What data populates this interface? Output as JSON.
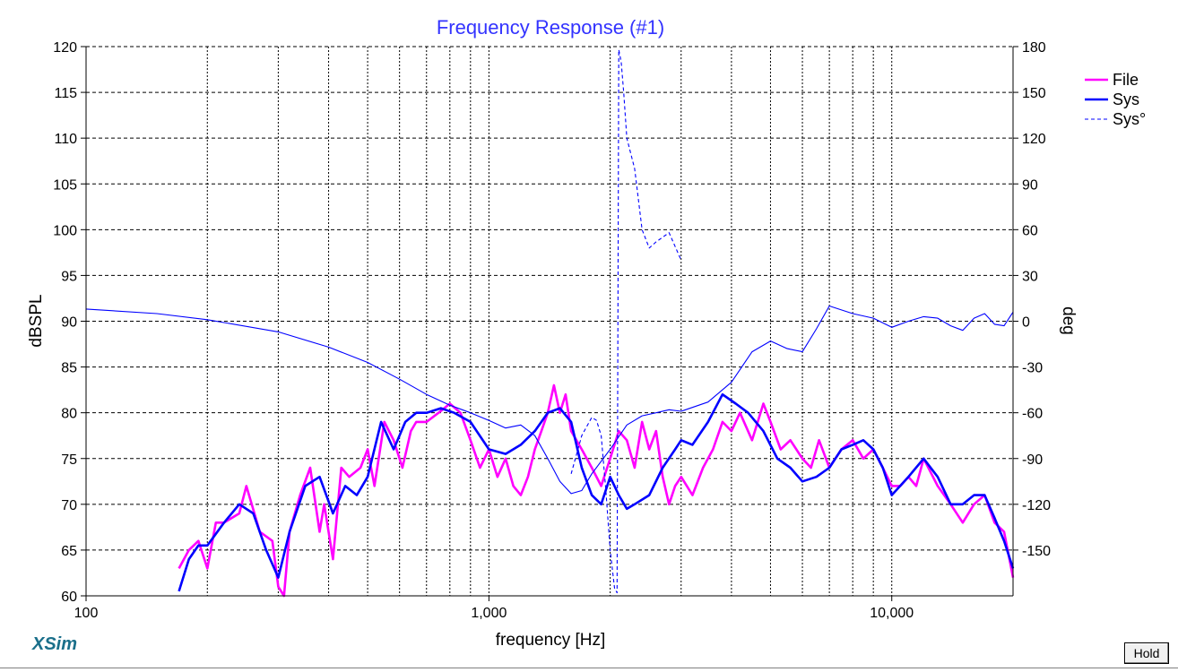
{
  "chart_data": {
    "type": "line",
    "title": "Frequency Response (#1)",
    "xlabel": "frequency [Hz]",
    "ylabel": "dBSPL",
    "y2label": "deg",
    "xscale": "log",
    "xlim": [
      100,
      20000
    ],
    "ylim": [
      60,
      120
    ],
    "y2lim": [
      -180,
      180
    ],
    "x_tick_labels": [
      "100",
      "1,000",
      "10,000"
    ],
    "x_ticks": [
      100,
      1000,
      10000
    ],
    "y_ticks": [
      60,
      65,
      70,
      75,
      80,
      85,
      90,
      95,
      100,
      105,
      110,
      115,
      120
    ],
    "y2_ticks": [
      -150,
      -120,
      -90,
      -60,
      -30,
      0,
      30,
      60,
      90,
      120,
      150,
      180
    ],
    "grid": true,
    "legend_position": "top-right",
    "colors": {
      "file": "#ff00ff",
      "sys": "#0000ff",
      "axis_text": "#000000",
      "title": "#3333ff"
    },
    "series": [
      {
        "name": "File",
        "axis": "left",
        "style": "solid-thick",
        "x": [
          170,
          180,
          190,
          200,
          210,
          220,
          240,
          250,
          270,
          290,
          300,
          310,
          320,
          340,
          360,
          380,
          390,
          410,
          430,
          450,
          480,
          500,
          520,
          550,
          580,
          610,
          640,
          660,
          700,
          750,
          800,
          850,
          900,
          950,
          1000,
          1050,
          1100,
          1150,
          1200,
          1250,
          1300,
          1350,
          1400,
          1450,
          1500,
          1550,
          1600,
          1700,
          1800,
          1900,
          2000,
          2100,
          2200,
          2300,
          2400,
          2500,
          2600,
          2700,
          2800,
          2900,
          3000,
          3200,
          3400,
          3600,
          3800,
          4000,
          4200,
          4500,
          4800,
          5000,
          5300,
          5600,
          6000,
          6300,
          6600,
          7000,
          7500,
          8000,
          8500,
          9000,
          9500,
          10000,
          10500,
          11000,
          11500,
          12000,
          13000,
          14000,
          15000,
          16000,
          17000,
          18000,
          19000,
          20000
        ],
        "y": [
          63,
          65,
          66,
          63,
          68,
          68,
          69,
          72,
          67,
          66,
          61,
          60,
          67,
          71,
          74,
          67,
          70,
          64,
          74,
          73,
          74,
          76,
          72,
          79,
          77,
          74,
          78,
          79,
          79,
          80,
          81,
          80,
          77,
          74,
          76,
          73,
          75,
          72,
          71,
          73,
          76,
          78,
          80,
          83,
          80,
          82,
          78,
          76,
          74,
          72,
          75,
          78,
          77,
          74,
          79,
          76,
          78,
          73,
          70,
          72,
          73,
          71,
          74,
          76,
          79,
          78,
          80,
          77,
          81,
          79,
          76,
          77,
          75,
          74,
          77,
          74,
          76,
          77,
          75,
          76,
          74,
          72,
          72,
          73,
          72,
          75,
          72,
          70,
          68,
          70,
          71,
          68,
          67,
          62
        ]
      },
      {
        "name": "Sys",
        "axis": "left",
        "style": "solid-thick",
        "x": [
          170,
          180,
          190,
          200,
          220,
          240,
          260,
          280,
          300,
          320,
          350,
          380,
          410,
          440,
          470,
          500,
          540,
          580,
          620,
          660,
          700,
          760,
          820,
          900,
          1000,
          1100,
          1200,
          1300,
          1400,
          1500,
          1600,
          1700,
          1800,
          1900,
          2000,
          2100,
          2200,
          2300,
          2500,
          2700,
          2900,
          3000,
          3200,
          3500,
          3800,
          4100,
          4400,
          4800,
          5200,
          5600,
          6000,
          6500,
          7000,
          7500,
          8000,
          8500,
          9000,
          9500,
          10000,
          11000,
          12000,
          13000,
          14000,
          15000,
          16000,
          17000,
          18000,
          19000,
          20000
        ],
        "y": [
          60.5,
          64,
          65.5,
          65.5,
          68,
          70,
          69,
          65,
          62,
          67,
          72,
          73,
          69,
          72,
          71,
          73,
          79,
          76,
          79,
          80,
          80,
          80.5,
          80,
          79,
          76,
          75.5,
          76.5,
          78,
          80,
          80.5,
          79,
          74,
          71,
          70,
          73,
          71,
          69.5,
          70,
          71,
          74,
          76,
          77,
          76.5,
          79,
          82,
          81,
          80,
          78,
          75,
          74,
          72.5,
          73,
          74,
          76,
          76.5,
          77,
          76,
          74,
          71,
          73,
          75,
          73,
          70,
          70,
          71,
          71,
          68.5,
          66,
          63
        ]
      },
      {
        "name": "Sys°",
        "axis": "right",
        "style": "dashed-thin",
        "x": [
          1600,
          1700,
          1800,
          1850,
          1900,
          1950,
          2000,
          2050,
          2080,
          2100,
          2130,
          2160,
          2200,
          2300,
          2400,
          2500,
          2600,
          2800,
          3000
        ],
        "y": [
          -100,
          -75,
          -63,
          -65,
          -75,
          -110,
          -150,
          -175,
          -178,
          178,
          170,
          150,
          120,
          100,
          60,
          48,
          52,
          58,
          40
        ]
      },
      {
        "name": "",
        "axis": "right",
        "style": "solid-thin",
        "x": [
          100,
          150,
          200,
          300,
          400,
          500,
          600,
          700,
          800,
          900,
          1000,
          1100,
          1200,
          1300,
          1400,
          1500,
          1600,
          1700,
          1800,
          2000,
          2200,
          2400,
          2600,
          2800,
          3000,
          3500,
          4000,
          4500,
          5000,
          5500,
          6000,
          6500,
          7000,
          8000,
          9000,
          10000,
          11000,
          12000,
          13000,
          14000,
          15000,
          16000,
          17000,
          18000,
          19000,
          20000
        ],
        "y": [
          8,
          5,
          1,
          -7,
          -17,
          -27,
          -38,
          -48,
          -55,
          -60,
          -65,
          -70,
          -68,
          -75,
          -90,
          -105,
          -113,
          -111,
          -100,
          -84,
          -68,
          -62,
          -60,
          -58,
          -59,
          -53,
          -40,
          -20,
          -13,
          -18,
          -20,
          -5,
          10,
          5,
          2,
          -4,
          0,
          3,
          2,
          -3,
          -6,
          2,
          5,
          -2,
          -3,
          6
        ]
      }
    ],
    "legend": [
      "File",
      "Sys",
      "Sys°"
    ]
  },
  "brand": "XSim",
  "hold_button": "Hold"
}
